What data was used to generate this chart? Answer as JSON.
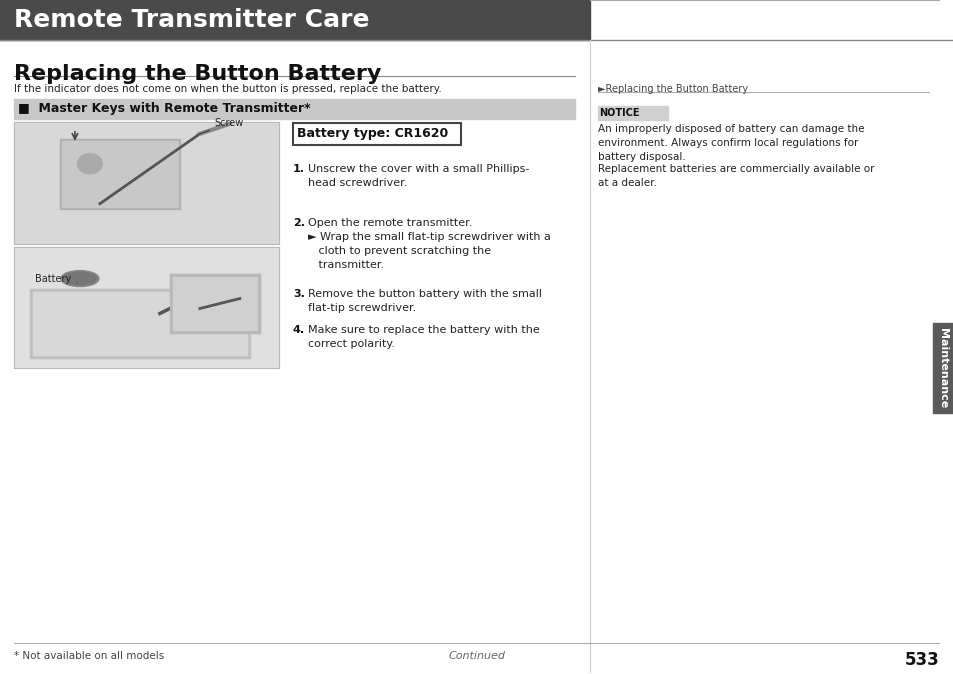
{
  "bg_color": "#ffffff",
  "header_bg": "#4a4a4a",
  "header_text": "Remote Transmitter Care",
  "header_text_color": "#ffffff",
  "header_font_size": 18,
  "title": "Replacing the Button Battery",
  "title_font_size": 16,
  "intro_text": "If the indicator does not come on when the button is pressed, replace the battery.",
  "section_header": "■  Master Keys with Remote Transmitter*",
  "section_bg": "#c8c8c8",
  "battery_box_text": "Battery type: CR1620",
  "steps": [
    "1.  Unscrew the cover with a small Phillips-\n    head screwdriver.",
    "2.  Open the remote transmitter.\n    ► Wrap the small flat-tip screwdriver with a\n       cloth to prevent scratching the\n       transmitter.",
    "3.  Remove the button battery with the small\n    flat-tip screwdriver.",
    "4.  Make sure to replace the battery with the\n    correct polarity."
  ],
  "right_ref": "►Replacing the Button Battery",
  "notice_label": "NOTICE",
  "notice_bg": "#d0d0d0",
  "notice_text": "An improperly disposed of battery can damage the\nenvironment. Always confirm local regulations for\nbattery disposal.",
  "notice_extra": "Replacement batteries are commercially available or\nat a dealer.",
  "footnote": "* Not available on all models",
  "continued": "Continued",
  "page_number": "533",
  "sidebar_text": "Maintenance",
  "sidebar_bg": "#5a5a5a",
  "image_bg_top": "#d8d8d8",
  "image_bg_bot": "#e0e0e0",
  "screw_label": "Screw",
  "battery_label": "Battery"
}
